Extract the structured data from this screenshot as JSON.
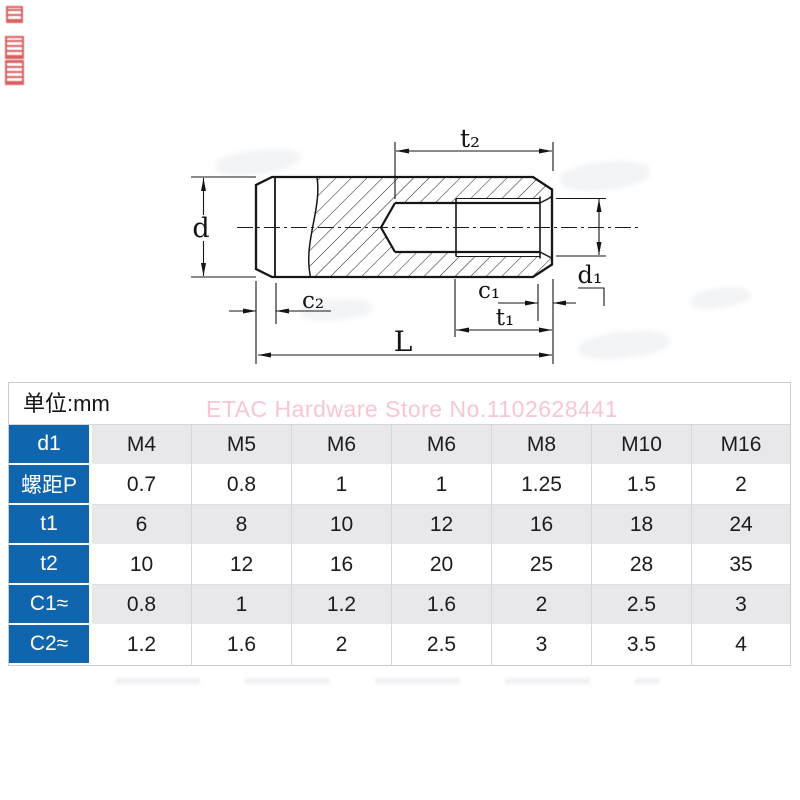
{
  "colors": {
    "table_header_blue": "#0f66af",
    "row_alt_gray": "#e8e8ea",
    "watermark_pink": "#f8c6d0",
    "seal_red": "#d03434",
    "line_black": "#161616"
  },
  "drawing": {
    "labels": {
      "t2": "t₂",
      "d": "d",
      "d1": "d₁",
      "c2": "c₂",
      "c1": "c₁",
      "t1": "t₁",
      "L": "L"
    }
  },
  "watermark": {
    "store_text": "ETAC Hardware Store No.1102628441"
  },
  "table": {
    "unit_label": "单位:mm",
    "rows": [
      {
        "label": "d1",
        "values": [
          "M4",
          "M5",
          "M6",
          "M6",
          "M8",
          "M10",
          "M16"
        ]
      },
      {
        "label": "螺距P",
        "values": [
          "0.7",
          "0.8",
          "1",
          "1",
          "1.25",
          "1.5",
          "2"
        ]
      },
      {
        "label": "t1",
        "values": [
          "6",
          "8",
          "10",
          "12",
          "16",
          "18",
          "24"
        ]
      },
      {
        "label": "t2",
        "values": [
          "10",
          "12",
          "16",
          "20",
          "25",
          "28",
          "35"
        ]
      },
      {
        "label": "C1≈",
        "values": [
          "0.8",
          "1",
          "1.2",
          "1.6",
          "2",
          "2.5",
          "3"
        ]
      },
      {
        "label": "C2≈",
        "values": [
          "1.2",
          "1.6",
          "2",
          "2.5",
          "3",
          "3.5",
          "4"
        ]
      }
    ]
  }
}
